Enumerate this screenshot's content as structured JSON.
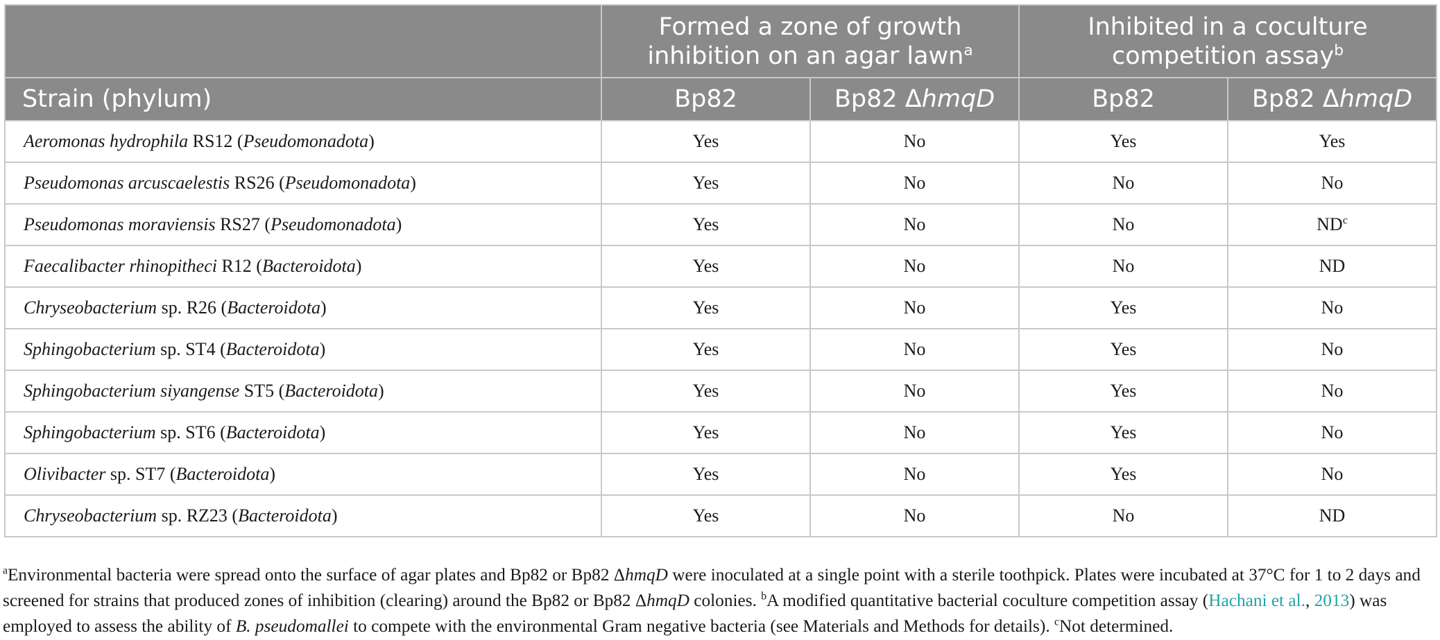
{
  "table": {
    "group_headers": [
      {
        "text": "Formed a zone of growth inhibition on an agar lawn",
        "sup": "a"
      },
      {
        "text": "Inhibited in a coculture competition assay",
        "sup": "b"
      }
    ],
    "subheaders": {
      "strain": "Strain (phylum)",
      "bp82": "Bp82",
      "mutant_prefix": "Bp82 Δ",
      "mutant_italic": "hmqD"
    },
    "rows": [
      {
        "genus": "Aeromonas hydrophila",
        "strain": " RS12 (",
        "phylum": "Pseudomonadota",
        "close": ")",
        "zone_bp82": "Yes",
        "zone_mutant": "No",
        "cocult_bp82": "Yes",
        "cocult_mutant": "Yes",
        "cocult_mutant_sup": ""
      },
      {
        "genus": "Pseudomonas arcuscaelestis",
        "strain": " RS26 (",
        "phylum": "Pseudomonadota",
        "close": ")",
        "zone_bp82": "Yes",
        "zone_mutant": "No",
        "cocult_bp82": "No",
        "cocult_mutant": "No",
        "cocult_mutant_sup": ""
      },
      {
        "genus": "Pseudomonas moraviensis",
        "strain": " RS27 (",
        "phylum": "Pseudomonadota",
        "close": ")",
        "zone_bp82": "Yes",
        "zone_mutant": "No",
        "cocult_bp82": "No",
        "cocult_mutant": "ND",
        "cocult_mutant_sup": "c"
      },
      {
        "genus": "Faecalibacter rhinopitheci",
        "strain": " R12 (",
        "phylum": "Bacteroidota",
        "close": ")",
        "zone_bp82": "Yes",
        "zone_mutant": "No",
        "cocult_bp82": "No",
        "cocult_mutant": "ND",
        "cocult_mutant_sup": ""
      },
      {
        "genus": "Chryseobacterium",
        "strain": " sp. R26 (",
        "phylum": "Bacteroidota",
        "close": ")",
        "zone_bp82": "Yes",
        "zone_mutant": "No",
        "cocult_bp82": "Yes",
        "cocult_mutant": "No",
        "cocult_mutant_sup": ""
      },
      {
        "genus": "Sphingobacterium",
        "strain": " sp. ST4 (",
        "phylum": "Bacteroidota",
        "close": ")",
        "zone_bp82": "Yes",
        "zone_mutant": "No",
        "cocult_bp82": "Yes",
        "cocult_mutant": "No",
        "cocult_mutant_sup": ""
      },
      {
        "genus": "Sphingobacterium siyangense",
        "strain": " ST5 (",
        "phylum": "Bacteroidota",
        "close": ")",
        "zone_bp82": "Yes",
        "zone_mutant": "No",
        "cocult_bp82": "Yes",
        "cocult_mutant": "No",
        "cocult_mutant_sup": ""
      },
      {
        "genus": "Sphingobacterium",
        "strain": " sp. ST6 (",
        "phylum": "Bacteroidota",
        "close": ")",
        "zone_bp82": "Yes",
        "zone_mutant": "No",
        "cocult_bp82": "Yes",
        "cocult_mutant": "No",
        "cocult_mutant_sup": ""
      },
      {
        "genus": "Olivibacter",
        "strain": " sp. ST7 (",
        "phylum": "Bacteroidota",
        "close": ")",
        "zone_bp82": "Yes",
        "zone_mutant": "No",
        "cocult_bp82": "Yes",
        "cocult_mutant": "No",
        "cocult_mutant_sup": ""
      },
      {
        "genus": "Chryseobacterium",
        "strain": " sp. RZ23 (",
        "phylum": "Bacteroidota",
        "close": ")",
        "zone_bp82": "Yes",
        "zone_mutant": "No",
        "cocult_bp82": "No",
        "cocult_mutant": "ND",
        "cocult_mutant_sup": ""
      }
    ]
  },
  "footnotes": {
    "a_mark": "a",
    "a_text_1": "Environmental bacteria were spread onto the surface of agar plates and Bp82 or Bp82 Δ",
    "a_italic_1": "hmqD",
    "a_text_2": " were inoculated at a single point with a sterile toothpick. Plates were incubated at 37°C for 1 to 2 days and screened for strains that produced zones of inhibition (clearing) around the Bp82 or Bp82 Δ",
    "a_italic_2": "hmqD",
    "a_text_3": " colonies. ",
    "b_mark": "b",
    "b_text_1": "A modified quantitative bacterial coculture competition assay (",
    "b_link_1": "Hachani et al.",
    "b_text_2": ", ",
    "b_link_2": "2013",
    "b_text_3": ") was employed to assess the ability of ",
    "b_italic": "B. pseudomallei",
    "b_text_4": " to compete with the environmental Gram negative bacteria (see Materials and Methods for details). ",
    "c_mark": "c",
    "c_text": "Not determined."
  },
  "colors": {
    "header_bg": "#8a8a8a",
    "header_text": "#ffffff",
    "grid": "#c9c9c9",
    "link": "#1fa4a9"
  }
}
